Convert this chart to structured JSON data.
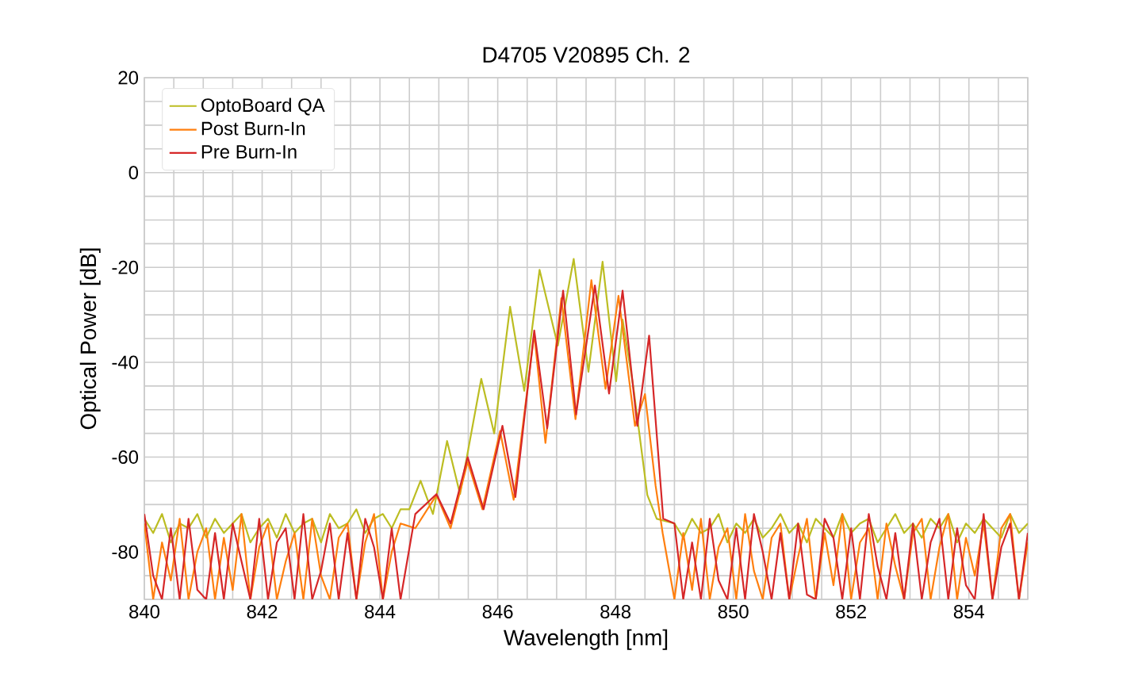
{
  "chart_data": {
    "type": "line",
    "title": "D4705 V20895 Ch. 2",
    "xlabel": "Wavelength [nm]",
    "ylabel": "Optical Power [dB]",
    "xlim": [
      840,
      855
    ],
    "ylim": [
      -90,
      20
    ],
    "xticks": [
      840,
      {
        "value": 840.5,
        "label": null
      },
      {
        "value": 841,
        "label": null
      },
      {
        "value": 841.5,
        "label": null
      },
      842,
      {
        "value": 842.5,
        "label": null
      },
      {
        "value": 843,
        "label": null
      },
      {
        "value": 843.5,
        "label": null
      },
      844,
      {
        "value": 844.5,
        "label": null
      },
      {
        "value": 845,
        "label": null
      },
      {
        "value": 845.5,
        "label": null
      },
      846,
      {
        "value": 846.5,
        "label": null
      },
      {
        "value": 847,
        "label": null
      },
      {
        "value": 847.5,
        "label": null
      },
      848,
      {
        "value": 848.5,
        "label": null
      },
      {
        "value": 849,
        "label": null
      },
      {
        "value": 849.5,
        "label": null
      },
      850,
      {
        "value": 850.5,
        "label": null
      },
      {
        "value": 851,
        "label": null
      },
      {
        "value": 851.5,
        "label": null
      },
      852,
      {
        "value": 852.5,
        "label": null
      },
      {
        "value": 853,
        "label": null
      },
      {
        "value": 853.5,
        "label": null
      },
      854,
      {
        "value": 854.5,
        "label": null
      },
      {
        "value": 855,
        "label": null
      }
    ],
    "yticks": [
      -80,
      {
        "value": -90,
        "label": null
      },
      {
        "value": -85,
        "label": null
      },
      {
        "value": -75,
        "label": null
      },
      {
        "value": -70,
        "label": null
      },
      {
        "value": -65,
        "label": null
      },
      -60,
      {
        "value": -55,
        "label": null
      },
      {
        "value": -50,
        "label": null
      },
      {
        "value": -45,
        "label": null
      },
      -40,
      {
        "value": -35,
        "label": null
      },
      {
        "value": -30,
        "label": null
      },
      {
        "value": -25,
        "label": null
      },
      -20,
      {
        "value": -15,
        "label": null
      },
      {
        "value": -10,
        "label": null
      },
      {
        "value": -5,
        "label": null
      },
      0,
      {
        "value": 5,
        "label": null
      },
      {
        "value": 10,
        "label": null
      },
      {
        "value": 15,
        "label": null
      },
      20
    ],
    "grid": true,
    "legend": "top left",
    "marker": "none",
    "line_style": "solid",
    "series": [
      {
        "name": "OptoBoard QA",
        "color": "#bcbd22",
        "x": [
          840,
          840.15,
          840.3,
          840.45,
          840.6,
          840.75,
          840.9,
          841.05,
          841.2,
          841.35,
          841.5,
          841.65,
          841.8,
          841.95,
          842.1,
          842.25,
          842.4,
          842.55,
          842.7,
          842.85,
          843,
          843.15,
          843.3,
          843.45,
          843.6,
          843.75,
          843.9,
          844.05,
          844.2,
          844.35,
          844.5,
          844.69,
          844.9,
          845.14,
          845.36,
          845.72,
          845.94,
          846.21,
          846.45,
          846.71,
          847.02,
          847.29,
          847.54,
          847.78,
          848.01,
          848.12,
          848.3,
          848.54,
          848.7,
          849,
          849.15,
          849.3,
          849.45,
          849.6,
          849.75,
          849.9,
          850.05,
          850.2,
          850.35,
          850.5,
          850.65,
          850.8,
          850.95,
          851.1,
          851.25,
          851.4,
          851.55,
          851.7,
          851.85,
          852,
          852.15,
          852.3,
          852.45,
          852.6,
          852.75,
          852.9,
          853.05,
          853.2,
          853.35,
          853.5,
          853.65,
          853.8,
          853.95,
          854.1,
          854.25,
          854.4,
          854.55,
          854.7,
          854.85,
          855
        ],
        "values": [
          -73,
          -76,
          -72,
          -78,
          -74,
          -75,
          -72,
          -77,
          -73,
          -76,
          -74,
          -72,
          -78,
          -75,
          -73,
          -77,
          -72,
          -76,
          -74,
          -73,
          -78,
          -72,
          -75,
          -74,
          -71,
          -76,
          -73,
          -72,
          -75,
          -71,
          -71,
          -65,
          -72,
          -56.6,
          -67.8,
          -43.5,
          -55,
          -28.3,
          -46,
          -20.5,
          -36.5,
          -18.2,
          -42,
          -18.8,
          -44,
          -31,
          -45,
          -68,
          -73,
          -74,
          -77,
          -73,
          -76,
          -75,
          -72,
          -78,
          -74,
          -76,
          -73,
          -77,
          -75,
          -72,
          -76,
          -74,
          -78,
          -73,
          -75,
          -77,
          -72,
          -76,
          -74,
          -73,
          -78,
          -75,
          -72,
          -76,
          -74,
          -77,
          -73,
          -75,
          -72,
          -78,
          -74,
          -76,
          -73,
          -75,
          -77,
          -72,
          -76,
          -74
        ]
      },
      {
        "name": "Post Burn-In",
        "color": "#ff7f0e",
        "x": [
          840,
          840.15,
          840.3,
          840.45,
          840.6,
          840.75,
          840.9,
          841.05,
          841.2,
          841.35,
          841.5,
          841.65,
          841.8,
          841.95,
          842.1,
          842.25,
          842.4,
          842.55,
          842.7,
          842.85,
          843,
          843.15,
          843.3,
          843.45,
          843.6,
          843.75,
          843.9,
          844.05,
          844.2,
          844.35,
          844.6,
          844.96,
          845.2,
          845.49,
          845.74,
          846.04,
          846.27,
          846.62,
          846.81,
          847.08,
          847.32,
          847.59,
          847.83,
          848.05,
          848.33,
          848.5,
          848.68,
          848.8,
          849,
          849.15,
          849.3,
          849.45,
          849.6,
          849.75,
          849.9,
          850.05,
          850.2,
          850.35,
          850.5,
          850.65,
          850.8,
          850.95,
          851.1,
          851.25,
          851.4,
          851.55,
          851.7,
          851.85,
          852,
          852.15,
          852.3,
          852.45,
          852.6,
          852.75,
          852.9,
          853.05,
          853.2,
          853.35,
          853.5,
          853.65,
          853.8,
          853.95,
          854.1,
          854.25,
          854.4,
          854.55,
          854.7,
          854.85,
          855
        ],
        "values": [
          -74,
          -90,
          -78,
          -86,
          -73,
          -90,
          -80,
          -75,
          -90,
          -77,
          -88,
          -72,
          -90,
          -79,
          -74,
          -90,
          -82,
          -76,
          -90,
          -73,
          -85,
          -90,
          -77,
          -74,
          -90,
          -78,
          -72,
          -90,
          -80,
          -74,
          -75,
          -68,
          -75,
          -61,
          -71,
          -54.5,
          -69,
          -34,
          -57,
          -26.5,
          -52,
          -22.7,
          -45.6,
          -26,
          -53.4,
          -46.7,
          -66,
          -76,
          -90,
          -76,
          -88,
          -73,
          -90,
          -79,
          -75,
          -90,
          -72,
          -84,
          -90,
          -77,
          -74,
          -90,
          -81,
          -73,
          -90,
          -76,
          -87,
          -72,
          -90,
          -78,
          -75,
          -90,
          -74,
          -83,
          -90,
          -76,
          -73,
          -90,
          -79,
          -72,
          -90,
          -77,
          -85,
          -74,
          -90,
          -75,
          -72,
          -90,
          -78
        ]
      },
      {
        "name": "Pre Burn-In",
        "color": "#d62728",
        "x": [
          840,
          840.15,
          840.3,
          840.45,
          840.6,
          840.75,
          840.9,
          841.05,
          841.2,
          841.35,
          841.5,
          841.65,
          841.8,
          841.95,
          842.1,
          842.25,
          842.4,
          842.55,
          842.7,
          842.85,
          843,
          843.15,
          843.3,
          843.45,
          843.6,
          843.75,
          843.9,
          844.05,
          844.2,
          844.35,
          844.6,
          844.96,
          845.2,
          845.49,
          845.76,
          846.08,
          846.3,
          846.62,
          846.84,
          847.11,
          847.33,
          847.65,
          847.89,
          848.12,
          848.37,
          848.57,
          848.81,
          849,
          849.15,
          849.3,
          849.45,
          849.6,
          849.75,
          849.9,
          850.05,
          850.2,
          850.35,
          850.5,
          850.65,
          850.8,
          850.95,
          851.1,
          851.25,
          851.4,
          851.55,
          851.7,
          851.85,
          852,
          852.15,
          852.3,
          852.45,
          852.6,
          852.75,
          852.9,
          853.05,
          853.2,
          853.35,
          853.5,
          853.65,
          853.8,
          853.95,
          854.1,
          854.25,
          854.4,
          854.55,
          854.7,
          854.85,
          855
        ],
        "values": [
          -72,
          -85,
          -90,
          -75,
          -90,
          -73,
          -88,
          -90,
          -76,
          -90,
          -74,
          -82,
          -90,
          -73,
          -90,
          -78,
          -75,
          -90,
          -72,
          -90,
          -84,
          -74,
          -90,
          -76,
          -90,
          -73,
          -79,
          -90,
          -75,
          -90,
          -72,
          -67.8,
          -74,
          -60,
          -71,
          -53.4,
          -68.4,
          -33.3,
          -53.9,
          -24.9,
          -51,
          -23.8,
          -46.6,
          -24.9,
          -53.4,
          -34.4,
          -73,
          -74,
          -90,
          -78,
          -90,
          -73,
          -86,
          -90,
          -75,
          -90,
          -72,
          -80,
          -90,
          -76,
          -90,
          -74,
          -89,
          -90,
          -73,
          -77,
          -90,
          -75,
          -90,
          -72,
          -83,
          -90,
          -76,
          -90,
          -74,
          -90,
          -78,
          -73,
          -90,
          -75,
          -87,
          -90,
          -72,
          -90,
          -79,
          -74,
          -90,
          -76
        ]
      }
    ]
  }
}
